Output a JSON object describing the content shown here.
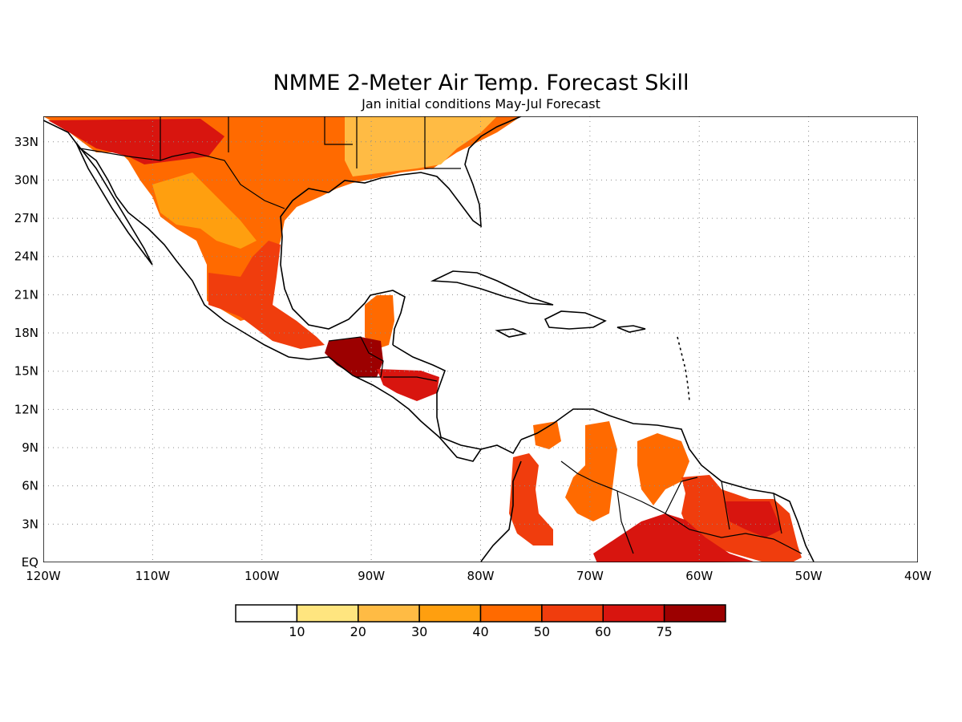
{
  "title": "NMME 2-Meter Air Temp. Forecast Skill",
  "subtitle": "Jan initial conditions   May-Jul Forecast",
  "map": {
    "lon_range": [
      -120,
      -40
    ],
    "lat_range": [
      0,
      35
    ],
    "x_tick_labels": [
      "120W",
      "110W",
      "100W",
      "90W",
      "80W",
      "70W",
      "60W",
      "50W",
      "40W"
    ],
    "y_tick_labels": [
      "EQ",
      "3N",
      "6N",
      "9N",
      "12N",
      "15N",
      "18N",
      "21N",
      "24N",
      "27N",
      "30N",
      "33N"
    ],
    "grid": true,
    "grid_style": "dotted"
  },
  "colorbar": {
    "tick_labels": [
      "10",
      "20",
      "30",
      "40",
      "50",
      "60",
      "75"
    ],
    "colors": [
      "#ffffff",
      "#ffe57f",
      "#ffbb44",
      "#ff9f0f",
      "#ff6a00",
      "#f03d0d",
      "#d8150f",
      "#9c0000"
    ]
  },
  "skill_regions": [
    {
      "id": "sw-us-high",
      "level": 6
    },
    {
      "id": "northern-mexico",
      "level": 4
    },
    {
      "id": "mexico-plateau",
      "level": 3
    },
    {
      "id": "gulf-coast-mexico",
      "level": 5
    },
    {
      "id": "guatemala",
      "level": 7
    },
    {
      "id": "honduras",
      "level": 6
    },
    {
      "id": "yucatan",
      "level": 4
    },
    {
      "id": "colombia-west",
      "level": 5
    },
    {
      "id": "venezuela",
      "level": 4
    },
    {
      "id": "guiana",
      "level": 5
    },
    {
      "id": "amazon-north",
      "level": 6
    },
    {
      "id": "se-us",
      "level": 2
    }
  ]
}
